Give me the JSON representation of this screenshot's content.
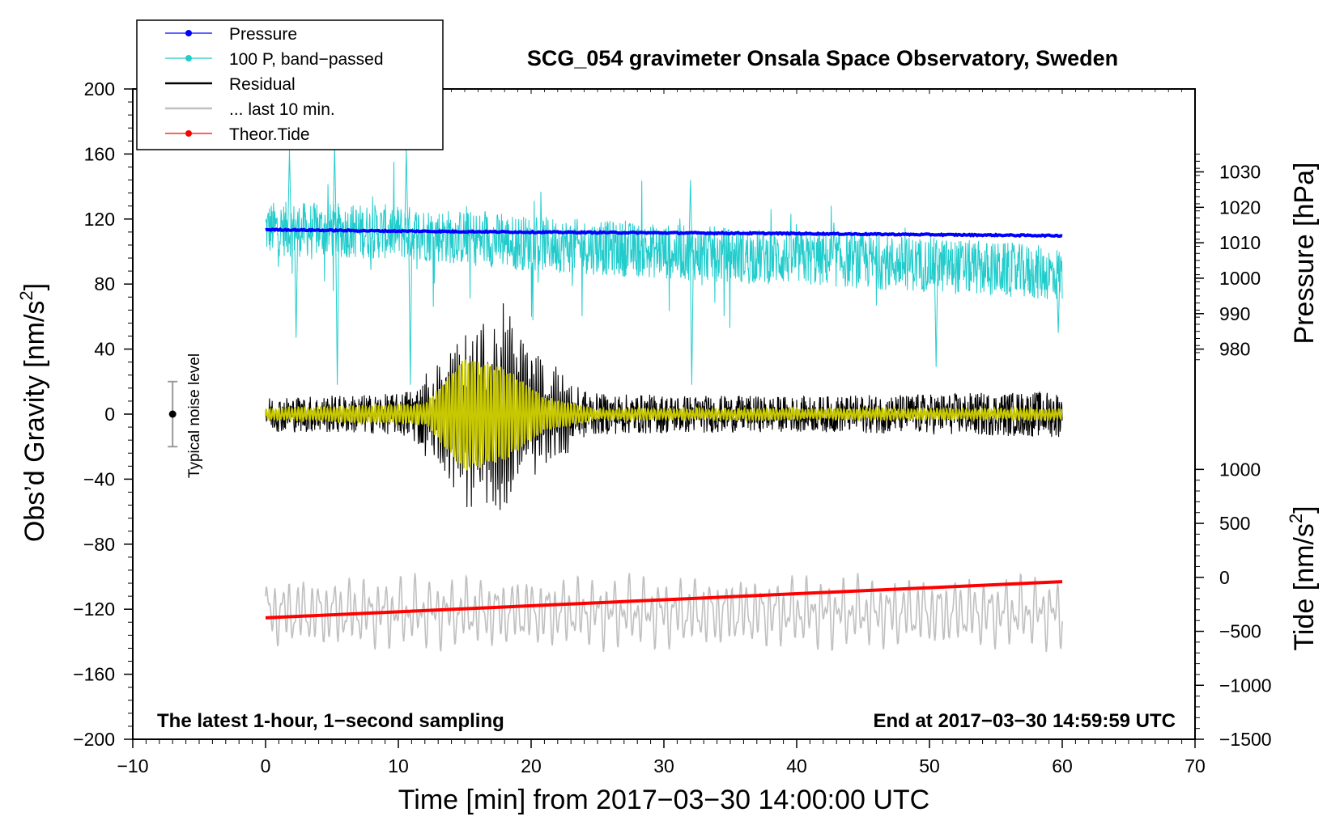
{
  "chart_data": {
    "type": "line",
    "title": "SCG_054 gravimeter Onsala Space Observatory, Sweden",
    "xlabel": "Time [min] from 2017−03−30 14:00:00 UTC",
    "ylabel_left": "Obs’d Gravity [nm/s",
    "ylabel_left_sup": "2",
    "ylabel_left_close": "]",
    "ylabel_pressure": "Pressure [hPa]",
    "ylabel_tide": "Tide [nm/s",
    "ylabel_tide_sup": "2",
    "ylabel_tide_close": "]",
    "xlim": [
      -10,
      70
    ],
    "ylim": [
      -200,
      200
    ],
    "x_ticks": [
      -10,
      0,
      10,
      20,
      30,
      40,
      50,
      60,
      70
    ],
    "x_tick_labels": [
      "−10",
      "0",
      "10",
      "20",
      "30",
      "40",
      "50",
      "60",
      "70"
    ],
    "y_ticks": [
      200,
      160,
      120,
      80,
      40,
      0,
      -40,
      -80,
      -120,
      -160,
      -200
    ],
    "y_tick_labels": [
      "200",
      "160",
      "120",
      "80",
      "40",
      "0",
      "−40",
      "−80",
      "−120",
      "−160",
      "−200"
    ],
    "pressure_ticks": [
      1030,
      1020,
      1010,
      1000,
      990,
      980
    ],
    "pressure_tick_labels": [
      "1030",
      "1020",
      "1010",
      "1000",
      "990",
      "980"
    ],
    "tide_ticks": [
      1000,
      500,
      0,
      -500,
      -1000,
      -1500
    ],
    "tide_tick_labels": [
      "1000",
      "500",
      "0",
      "−500",
      "−1000",
      "−1500"
    ],
    "pressure_map": {
      "p1": 1030,
      "g1": 149,
      "p2": 980,
      "g2": 40
    },
    "tide_map": {
      "t1": 1000,
      "g1": -34,
      "t2": -1500,
      "g2": -200
    },
    "annotation_left": "The latest 1-hour, 1−second sampling",
    "annotation_right": "End at 2017−03−30 14:59:59 UTC",
    "noise_label": "Typical noise level",
    "noise_bar": {
      "x": -7.0,
      "center": 0,
      "halfwidth": 20
    },
    "legend": [
      {
        "label": "Pressure",
        "color": "#0000ff",
        "marker": true
      },
      {
        "label": "100 P, band−passed",
        "color": "#22cccc",
        "marker": true
      },
      {
        "label": "Residual",
        "color": "#000000",
        "marker": false
      },
      {
        "label": "... last 10 min.",
        "color": "#c0c0c0",
        "marker": false
      },
      {
        "label": "Theor.Tide",
        "color": "#ff0000",
        "marker": true
      }
    ],
    "series": [
      {
        "name": "Pressure",
        "unit": "hPa",
        "color": "#0000ff",
        "points": [
          [
            0,
            1013.7
          ],
          [
            10,
            1013.3
          ],
          [
            20,
            1013.0
          ],
          [
            30,
            1012.8
          ],
          [
            40,
            1012.6
          ],
          [
            50,
            1012.3
          ],
          [
            60,
            1012.0
          ]
        ]
      },
      {
        "name": "100 P, band−passed",
        "unit": "nm/s2",
        "color": "#22cccc",
        "baseline": [
          [
            0,
            114
          ],
          [
            10,
            112
          ],
          [
            20,
            105
          ],
          [
            30,
            100
          ],
          [
            40,
            96
          ],
          [
            50,
            92
          ],
          [
            60,
            86
          ]
        ],
        "spikes": [
          [
            1.8,
            163
          ],
          [
            2.3,
            47
          ],
          [
            5.2,
            165
          ],
          [
            5.4,
            18
          ],
          [
            10.6,
            163
          ],
          [
            10.9,
            18
          ],
          [
            32.0,
            144
          ],
          [
            32.1,
            18
          ],
          [
            50.5,
            29
          ],
          [
            59.7,
            50
          ]
        ]
      },
      {
        "name": "Residual",
        "unit": "nm/s2",
        "color": "#000000",
        "envelope": [
          [
            0,
            12
          ],
          [
            10,
            14
          ],
          [
            13,
            30
          ],
          [
            15,
            50
          ],
          [
            18,
            58
          ],
          [
            20,
            34
          ],
          [
            23,
            20
          ],
          [
            25,
            14
          ],
          [
            40,
            12
          ],
          [
            60,
            16
          ]
        ]
      },
      {
        "name": "Filtered residual",
        "unit": "nm/s2",
        "color": "#c8c800",
        "envelope": [
          [
            0,
            3
          ],
          [
            12,
            6
          ],
          [
            15,
            35
          ],
          [
            18,
            28
          ],
          [
            21,
            10
          ],
          [
            25,
            3
          ],
          [
            60,
            3
          ]
        ]
      },
      {
        "name": "... last 10 min.",
        "unit": "nm/s2",
        "color": "#c0c0c0",
        "offset": -122,
        "amplitude": 18
      },
      {
        "name": "Theor.Tide",
        "unit": "nm/s2",
        "color": "#ff0000",
        "points": [
          [
            0,
            -375
          ],
          [
            60,
            -40
          ]
        ]
      }
    ]
  }
}
